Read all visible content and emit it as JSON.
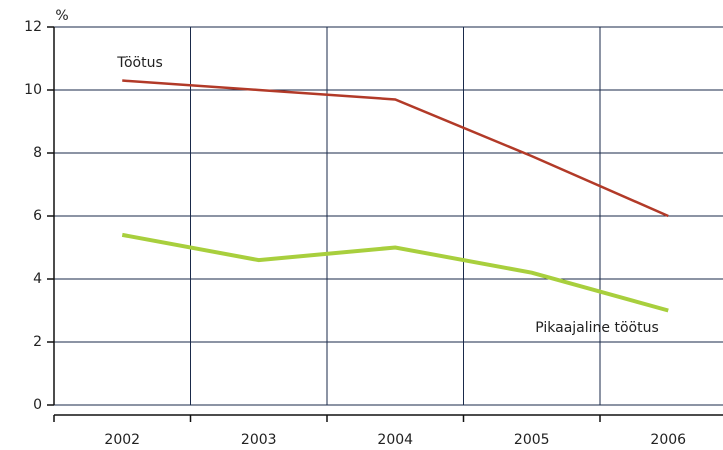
{
  "chart_data": {
    "type": "line",
    "ylabel": "%",
    "categories": [
      "2002",
      "2003",
      "2004",
      "2005",
      "2006"
    ],
    "series": [
      {
        "name": "Töötus",
        "color": "#b23a28",
        "values": [
          10.3,
          10.0,
          9.7,
          7.9,
          6.0
        ]
      },
      {
        "name": "Pikaajaline töötus",
        "color": "#a8cf3d",
        "values": [
          5.4,
          4.6,
          5.0,
          4.2,
          3.0
        ]
      }
    ],
    "ylim": [
      0,
      12
    ],
    "yticks": [
      0,
      2,
      4,
      6,
      8,
      10,
      12
    ],
    "grid": true
  }
}
